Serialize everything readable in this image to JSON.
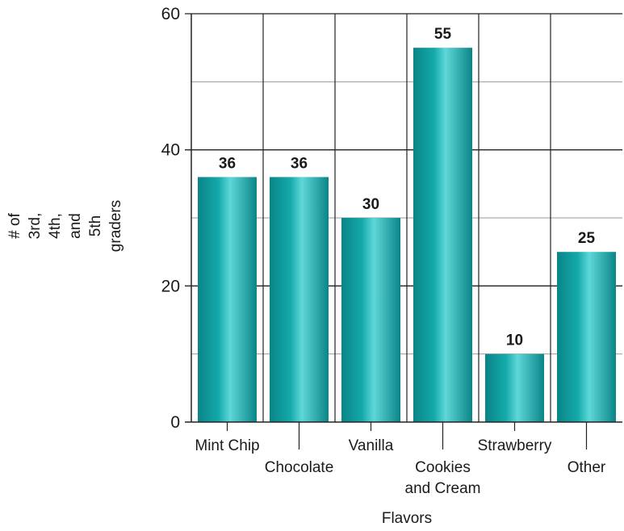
{
  "chart_data": {
    "type": "bar",
    "categories": [
      "Mint Chip",
      "Chocolate",
      "Vanilla",
      "Cookies and Cream",
      "Strawberry",
      "Other"
    ],
    "category_label_lines": [
      [
        "Mint Chip"
      ],
      [
        "Chocolate"
      ],
      [
        "Vanilla"
      ],
      [
        "Cookies",
        "and Cream"
      ],
      [
        "Strawberry"
      ],
      [
        "Other"
      ]
    ],
    "values": [
      36,
      36,
      30,
      55,
      10,
      25
    ],
    "data_labels": [
      "36",
      "36",
      "30",
      "55",
      "10",
      "25"
    ],
    "xlabel": "Flavors",
    "ylabel_lines": [
      "# of",
      "3rd,",
      "4th,",
      "and",
      "5th",
      "graders"
    ],
    "ylim": [
      0,
      60
    ],
    "yticks": [
      0,
      20,
      40,
      60
    ],
    "ytick_labels": [
      "0",
      "20",
      "40",
      "60"
    ],
    "minor_gridlines": [
      10,
      30,
      50
    ],
    "grid": true,
    "colors": {
      "bar": "#14a9aa",
      "bar_light": "#5fd7d9",
      "bar_dark": "#0a8587",
      "grid_major": "#222222",
      "grid_minor": "#9a9a9a",
      "axis": "#222222"
    }
  }
}
